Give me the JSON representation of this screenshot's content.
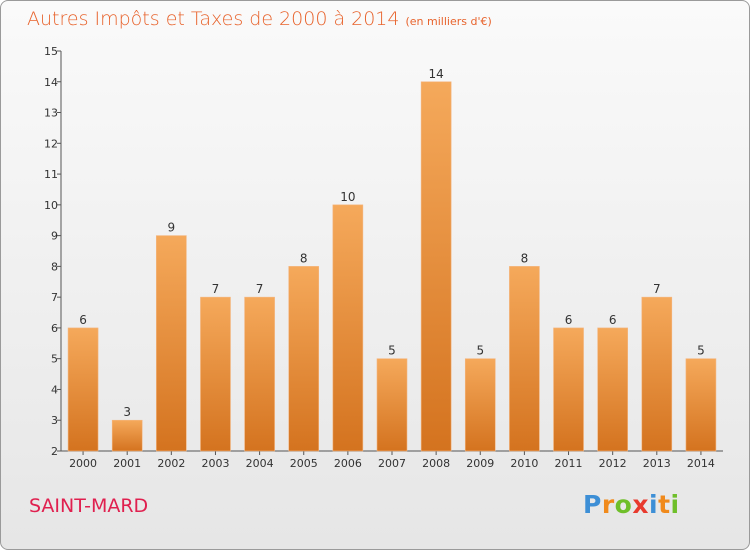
{
  "header": {
    "title": "Autres Impôts et Taxes de 2000 à 2014",
    "unit": "(en milliers d'€)"
  },
  "footer": {
    "town": "SAINT-MARD",
    "logo_letters": [
      "P",
      "r",
      "o",
      "x",
      "i",
      "t",
      "i"
    ]
  },
  "colors": {
    "title": "#e8632c",
    "town": "#e0204f",
    "bar_top": "#f5a95b",
    "bar_bottom": "#d4731f",
    "logo": [
      "#3d8fd6",
      "#f08a1c",
      "#6fbf2a",
      "#e83a2e",
      "#3d8fd6",
      "#f08a1c",
      "#6fbf2a"
    ]
  },
  "chart_data": {
    "type": "bar",
    "title": "Autres Impôts et Taxes de 2000 à 2014",
    "categories": [
      "2000",
      "2001",
      "2002",
      "2003",
      "2004",
      "2005",
      "2006",
      "2007",
      "2008",
      "2009",
      "2010",
      "2011",
      "2012",
      "2013",
      "2014"
    ],
    "values": [
      6,
      3,
      9,
      7,
      7,
      8,
      10,
      5,
      14,
      5,
      8,
      6,
      6,
      7,
      5
    ],
    "ylim": [
      2,
      15
    ],
    "yticks": [
      2,
      3,
      4,
      5,
      6,
      7,
      8,
      9,
      10,
      11,
      12,
      13,
      14,
      15
    ],
    "grid": false,
    "data_labels": true
  }
}
